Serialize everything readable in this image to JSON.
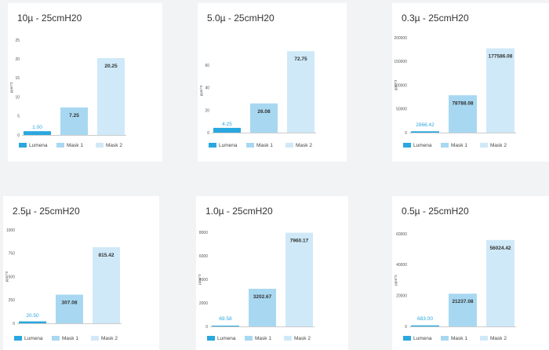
{
  "legend_labels": [
    "Lumena",
    "Mask 1",
    "Mask 2"
  ],
  "colors": [
    "#2aa7df",
    "#a8d8f1",
    "#cfe9f8"
  ],
  "ylabel": "ppm^3",
  "chart_data": [
    {
      "type": "bar",
      "title": "10µ - 25cmH20",
      "categories": [
        "Lumena",
        "Mask 1",
        "Mask 2"
      ],
      "values": [
        1.0,
        7.25,
        20.25
      ],
      "value_labels": [
        "1.00",
        "7.25",
        "20.25"
      ],
      "ylabel": "ppm^3",
      "ylim": [
        0,
        25
      ],
      "yticks": [
        0,
        5,
        10,
        15,
        20,
        25
      ],
      "legend": "bottom-left"
    },
    {
      "type": "bar",
      "title": "5.0µ - 25cmH20",
      "categories": [
        "Lumena",
        "Mask 1",
        "Mask 2"
      ],
      "values": [
        4.25,
        26.08,
        72.75
      ],
      "value_labels": [
        "4.25",
        "26.08",
        "72.75"
      ],
      "ylabel": "ppm^3",
      "ylim": [
        0,
        75
      ],
      "yticks": [
        0,
        20,
        40,
        60
      ],
      "legend": "bottom-left"
    },
    {
      "type": "bar",
      "title": "0.3µ - 25cmH20",
      "categories": [
        "Lumena",
        "Mask 1",
        "Mask 2"
      ],
      "values": [
        2866.42,
        78788.08,
        177586.08
      ],
      "value_labels": [
        "2866.42",
        "78788.08",
        "177586.08"
      ],
      "ylabel": "ppm^3",
      "ylim": [
        0,
        200000
      ],
      "yticks": [
        0,
        50000,
        100000,
        150000,
        200000
      ],
      "legend": "bottom-left"
    },
    {
      "type": "bar",
      "title": "2.5µ - 25cmH20",
      "categories": [
        "Lumena",
        "Mask 1",
        "Mask 2"
      ],
      "values": [
        20.5,
        307.08,
        815.42
      ],
      "value_labels": [
        "20.50",
        "307.08",
        "815.42"
      ],
      "ylabel": "ppm^3",
      "ylim": [
        0,
        1000
      ],
      "yticks": [
        0,
        250,
        500,
        750,
        1000
      ],
      "legend": "bottom-left"
    },
    {
      "type": "bar",
      "title": "1.0µ - 25cmH20",
      "categories": [
        "Lumena",
        "Mask 1",
        "Mask 2"
      ],
      "values": [
        69.58,
        3202.67,
        7960.17
      ],
      "value_labels": [
        "69.58",
        "3202.67",
        "7960.17"
      ],
      "ylabel": "ppm^3",
      "ylim": [
        0,
        8000
      ],
      "yticks": [
        0,
        2000,
        4000,
        6000,
        8000
      ],
      "legend": "bottom-left"
    },
    {
      "type": "bar",
      "title": "0.5µ - 25cmH20",
      "categories": [
        "Lumena",
        "Mask 1",
        "Mask 2"
      ],
      "values": [
        683.0,
        21237.08,
        56024.42
      ],
      "value_labels": [
        "683.00",
        "21237.08",
        "56024.42"
      ],
      "ylabel": "ppm^3",
      "ylim": [
        0,
        60000
      ],
      "yticks": [
        0,
        20000,
        40000,
        60000
      ],
      "legend": "bottom-left"
    }
  ]
}
